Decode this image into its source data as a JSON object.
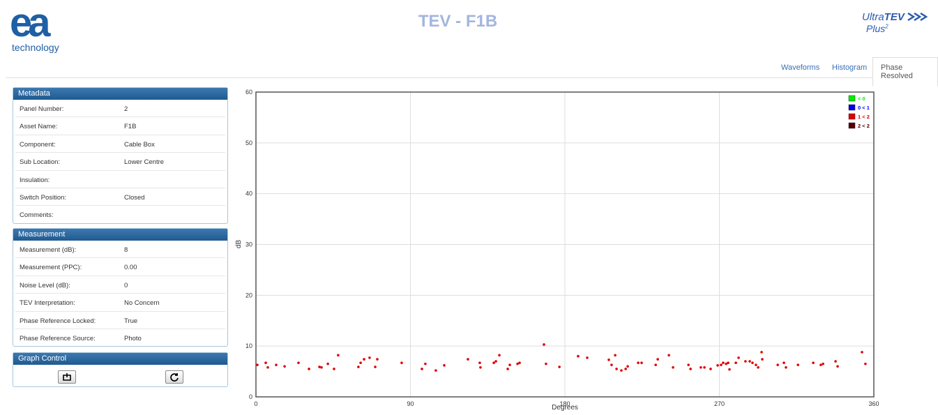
{
  "header": {
    "logo": "ea",
    "logo_sub": "technology",
    "title": "TEV - F1B",
    "brand": "Ultra",
    "brand_bold": "TEV",
    "brand_sub": "Plus",
    "brand_sup": "2"
  },
  "tabs": {
    "items": [
      "Waveforms",
      "Histogram",
      "Phase Resolved"
    ],
    "active": 2
  },
  "panels": {
    "metadata": {
      "title": "Metadata",
      "rows": [
        {
          "label": "Panel Number:",
          "value": "2"
        },
        {
          "label": "Asset Name:",
          "value": "F1B"
        },
        {
          "label": "Component:",
          "value": "Cable Box"
        },
        {
          "label": "Sub Location:",
          "value": "Lower Centre"
        },
        {
          "label": "Insulation:"
        },
        {
          "label": "Switch Position:",
          "value": "Closed"
        },
        {
          "label": "Comments:"
        }
      ]
    },
    "measurement": {
      "title": "Measurement",
      "rows": [
        {
          "label": "Measurement (dB):",
          "value": "8"
        },
        {
          "label": "Measurement (PPC):",
          "value": "0.00"
        },
        {
          "label": "Noise Level (dB):",
          "value": "0"
        },
        {
          "label": "TEV Interpretation:",
          "value": "No Concern"
        },
        {
          "label": "Phase Reference Locked:",
          "value": "True"
        },
        {
          "label": "Phase Reference Source:",
          "value": "Photo"
        }
      ]
    },
    "graph_control": {
      "title": "Graph Control"
    }
  },
  "chart_data": {
    "type": "scatter",
    "xlabel": "Degrees",
    "ylabel": "dB",
    "xlim": [
      0,
      360
    ],
    "xticks": [
      0,
      90,
      180,
      270,
      360
    ],
    "ylim": [
      0,
      60
    ],
    "yticks": [
      0,
      10,
      20,
      30,
      40,
      50,
      60
    ],
    "grid": true,
    "legend": "upper right",
    "series": [
      {
        "name": "< 0",
        "color": "#00ee00",
        "x": [],
        "values": []
      },
      {
        "name": "0 < 1",
        "color": "#0000ee",
        "x": [],
        "values": []
      },
      {
        "name": "1 < 2",
        "color": "#e00000",
        "x": [
          0.8,
          5.7,
          6.9,
          11.8,
          16.7,
          24.8,
          30.9,
          37,
          38.2,
          41.9,
          45.5,
          47.9,
          59.7,
          61,
          63,
          66.2,
          69.5,
          70.7,
          84.9,
          96.7,
          98.7,
          104.8,
          109.7,
          123.5,
          130.4,
          130.8,
          138.6,
          139.8,
          141.8,
          146.7,
          147.9,
          152.4,
          153.6,
          167.8,
          169,
          176.8,
          187.7,
          193,
          205.6,
          207.2,
          209.3,
          210.1,
          212.9,
          215.4,
          216.6,
          222.7,
          224.7,
          232.9,
          234.1,
          240.6,
          243,
          252,
          253.2,
          259.2,
          261.3,
          264.9,
          269,
          271,
          272.2,
          273.9,
          275.1,
          275.9,
          279.6,
          281.2,
          285.2,
          287.7,
          289.3,
          291.3,
          292.6,
          294.6,
          295,
          304,
          307.6,
          308.8,
          315.8,
          324.7,
          329.1,
          330.4,
          337.7,
          338.9,
          353.1,
          355.1
        ],
        "values": [
          6.3,
          6.7,
          5.8,
          6.3,
          6.0,
          6.7,
          5.5,
          5.9,
          5.8,
          6.5,
          5.5,
          8.2,
          5.9,
          6.7,
          7.4,
          7.7,
          5.9,
          7.4,
          6.7,
          5.5,
          6.5,
          5.2,
          6.2,
          7.4,
          6.7,
          5.8,
          6.7,
          7.0,
          8.2,
          5.5,
          6.3,
          6.5,
          6.7,
          10.3,
          6.5,
          5.9,
          8.0,
          7.7,
          7.3,
          6.3,
          8.2,
          5.5,
          5.2,
          5.5,
          6.0,
          6.7,
          6.7,
          6.3,
          7.4,
          8.2,
          5.8,
          6.3,
          5.5,
          5.8,
          5.8,
          5.5,
          6.2,
          6.3,
          6.7,
          6.5,
          6.7,
          5.4,
          6.7,
          7.7,
          7.0,
          7.0,
          6.7,
          6.3,
          5.8,
          8.8,
          7.4,
          6.3,
          6.7,
          5.8,
          6.3,
          6.7,
          6.3,
          6.5,
          7.0,
          6.0,
          8.8,
          6.5
        ]
      },
      {
        "name": "2 < 2",
        "color": "#550000",
        "x": [],
        "values": []
      }
    ]
  }
}
